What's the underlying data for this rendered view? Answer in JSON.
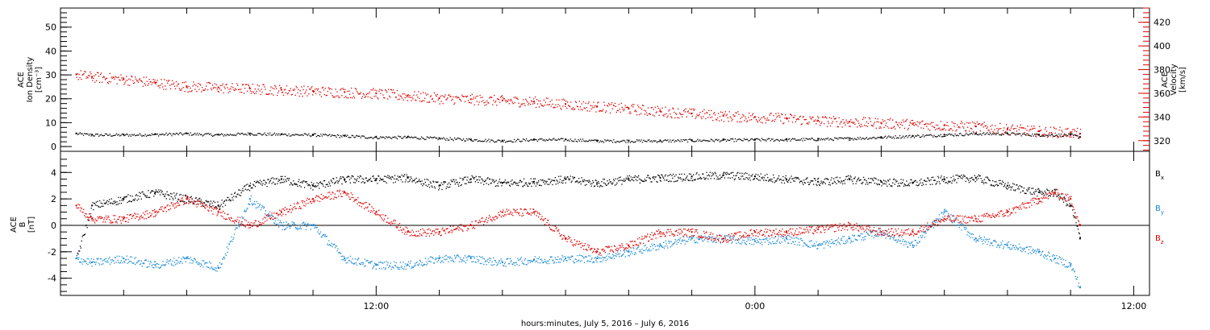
{
  "chart_data": [
    {
      "type": "scatter",
      "panel": "plasma",
      "ylabel_left": [
        "ACE",
        "Ion Density",
        "[cm⁻³]"
      ],
      "ylabel_right": [
        "ACE",
        "Velocity",
        "[km/s]"
      ],
      "ylim_left": [
        -2,
        58
      ],
      "yticks_left": [
        "0",
        "10",
        "20",
        "30",
        "40",
        "50"
      ],
      "ylim_right": [
        311,
        432
      ],
      "yticks_right": [
        "320",
        "340",
        "360",
        "380",
        "400",
        "420"
      ],
      "colors": {
        "density": "#000000",
        "velocity": "#dd0000"
      },
      "series": [
        {
          "name": "Ion Density",
          "axis": "left",
          "color": "#000000",
          "x": [
            2.5,
            3,
            4,
            5,
            6,
            7,
            8,
            9,
            10,
            11,
            12,
            13,
            14,
            15,
            16,
            17,
            18,
            19,
            20,
            21,
            22,
            23,
            24,
            25,
            26,
            27,
            28,
            29,
            30,
            31,
            32,
            33,
            34,
            34.3
          ],
          "y": [
            5.5,
            5,
            5,
            5.2,
            5.5,
            5,
            5.5,
            5.2,
            5,
            4.5,
            4,
            4,
            3.5,
            3,
            2.5,
            3,
            3,
            2.5,
            2.5,
            2.5,
            2.7,
            2.8,
            3,
            3,
            3.2,
            3.5,
            4,
            4.5,
            5,
            5.5,
            5.5,
            5,
            5,
            4
          ]
        },
        {
          "name": "Velocity",
          "axis": "right",
          "color": "#dd0000",
          "x": [
            2.5,
            3,
            4,
            5,
            6,
            7,
            8,
            9,
            10,
            11,
            12,
            13,
            14,
            15,
            16,
            17,
            18,
            19,
            20,
            21,
            22,
            23,
            24,
            25,
            26,
            27,
            28,
            29,
            30,
            31,
            32,
            33,
            34,
            34.3
          ],
          "y": [
            376,
            374,
            372,
            369,
            366,
            365,
            364,
            363,
            362,
            361,
            360,
            358,
            356,
            355,
            354,
            353,
            351,
            349,
            347,
            345,
            343,
            341,
            340,
            339,
            337,
            336,
            335,
            334,
            333,
            332,
            330,
            328,
            327,
            326
          ]
        }
      ]
    },
    {
      "type": "scatter",
      "panel": "magnetic-field",
      "ylabel": [
        "ACE",
        "B",
        "[nT]"
      ],
      "ylim": [
        -5.3,
        5.6
      ],
      "yticks": [
        "-4",
        "-2",
        "0",
        "2",
        "4"
      ],
      "zero_line": true,
      "colors": {
        "bx": "#000000",
        "by": "#1a8ad4",
        "bz": "#dd0000"
      },
      "legend_entries": [
        {
          "base": "B",
          "sub": "x",
          "color": "#000000"
        },
        {
          "base": "B",
          "sub": "y",
          "color": "#1a8ad4"
        },
        {
          "base": "B",
          "sub": "z",
          "color": "#dd0000"
        }
      ],
      "series": [
        {
          "name": "Bx",
          "color": "#000000",
          "x": [
            2.5,
            3,
            4,
            5,
            6,
            7,
            8,
            9,
            10,
            11,
            12,
            13,
            14,
            15,
            16,
            17,
            18,
            19,
            20,
            21,
            22,
            23,
            24,
            25,
            26,
            27,
            28,
            29,
            30,
            31,
            32,
            33,
            33.5,
            34,
            34.3
          ],
          "y": [
            -2.5,
            1.5,
            2,
            2.5,
            2,
            1.5,
            3,
            3.5,
            3,
            3.5,
            3.5,
            3.6,
            3,
            3.5,
            3.2,
            3.3,
            3.5,
            3.2,
            3.5,
            3.6,
            3.7,
            3.8,
            3.7,
            3.5,
            3.3,
            3.5,
            3.3,
            3.2,
            3.5,
            3.6,
            3,
            2.5,
            2.5,
            1.5,
            -1
          ]
        },
        {
          "name": "By",
          "color": "#1a8ad4",
          "x": [
            2.5,
            3,
            4,
            5,
            6,
            7,
            8,
            9,
            10,
            11,
            12,
            13,
            14,
            15,
            16,
            17,
            18,
            19,
            20,
            21,
            22,
            23,
            24,
            25,
            26,
            27,
            28,
            29,
            30,
            31,
            32,
            33,
            33.5,
            34,
            34.3
          ],
          "y": [
            -2.5,
            -2.8,
            -2.5,
            -3,
            -2.5,
            -3.2,
            2,
            0,
            0,
            -2.5,
            -3,
            -3,
            -2.5,
            -2.5,
            -2.8,
            -2.6,
            -2.5,
            -2.5,
            -2,
            -1.5,
            -1,
            -1,
            -1.2,
            -1,
            -1.5,
            -1,
            -0.5,
            -1.5,
            1,
            -1,
            -1.5,
            -2,
            -2.5,
            -3,
            -4.7
          ]
        },
        {
          "name": "Bz",
          "color": "#dd0000",
          "x": [
            2.5,
            3,
            4,
            5,
            6,
            7,
            8,
            9,
            10,
            11,
            12,
            13,
            14,
            15,
            16,
            17,
            18,
            19,
            20,
            21,
            22,
            23,
            24,
            25,
            26,
            27,
            28,
            29,
            30,
            31,
            32,
            33,
            33.5,
            34,
            34.3
          ],
          "y": [
            1.5,
            0.5,
            0.5,
            1,
            2,
            1,
            0,
            1,
            2,
            2.5,
            1,
            -0.5,
            -0.5,
            0,
            1,
            1,
            -1,
            -2,
            -1.5,
            -0.5,
            -0.5,
            -1,
            -0.5,
            -0.5,
            -0.3,
            0,
            -0.5,
            -0.5,
            0.5,
            0.5,
            1,
            2,
            2.5,
            2,
            0
          ]
        }
      ]
    }
  ],
  "x_axis": {
    "xlim": [
      2,
      36.5
    ],
    "major_ticks": [
      {
        "x": 12,
        "label": "12:00"
      },
      {
        "x": 24,
        "label": "0:00"
      },
      {
        "x": 36,
        "label": "12:00"
      }
    ],
    "minor_tick_every_hours": 2,
    "xlabel": "hours:minutes,  July  5, 2016 – July  6, 2016"
  }
}
